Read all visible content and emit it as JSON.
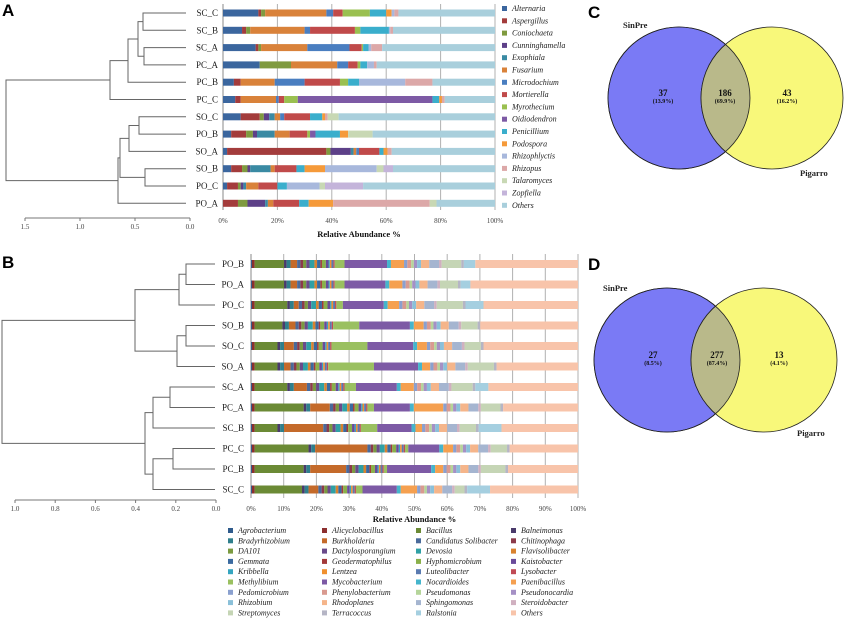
{
  "panel_labels": {
    "a": "A",
    "b": "B",
    "c": "C",
    "d": "D"
  },
  "chart_data": [
    {
      "id": "A",
      "type": "bar",
      "orientation": "horizontal-stacked",
      "xlabel": "Relative Abundance %",
      "xticks": [
        "0%",
        "20%",
        "40%",
        "60%",
        "80%",
        "100%"
      ],
      "dendrogram_ticks": [
        "1.5",
        "1.0",
        "0.5",
        "0.0"
      ],
      "samples": [
        "SC_C",
        "SC_B",
        "SC_A",
        "PC_A",
        "PC_B",
        "PC_C",
        "SO_C",
        "PO_B",
        "SO_A",
        "SO_B",
        "PO_C",
        "PO_A"
      ],
      "series": [
        {
          "name": "Alternaria",
          "color": "#3b669e"
        },
        {
          "name": "Aspergillus",
          "color": "#a33c3c"
        },
        {
          "name": "Coniochaeta",
          "color": "#7f9a3f"
        },
        {
          "name": "Cunninghamella",
          "color": "#5d4088"
        },
        {
          "name": "Exophiala",
          "color": "#3a8aa3"
        },
        {
          "name": "Fusarium",
          "color": "#d9823a"
        },
        {
          "name": "Microdochium",
          "color": "#4a7ec0"
        },
        {
          "name": "Mortierella",
          "color": "#c04a4a"
        },
        {
          "name": "Myrothecium",
          "color": "#9ac050"
        },
        {
          "name": "Oidiodendron",
          "color": "#7d5aa5"
        },
        {
          "name": "Penicillium",
          "color": "#3aaecc"
        },
        {
          "name": "Podospora",
          "color": "#f59a3a"
        },
        {
          "name": "Rhizophlyctis",
          "color": "#a8b8dc"
        },
        {
          "name": "Rhizopus",
          "color": "#dca8a8"
        },
        {
          "name": "Talaromyces",
          "color": "#c8d8b4"
        },
        {
          "name": "Zopfiella",
          "color": "#c4b4da"
        },
        {
          "name": "Others",
          "color": "#a9cfdc"
        }
      ],
      "values": {
        "SC_C": [
          13,
          1,
          1.5,
          0,
          0,
          22.5,
          2.5,
          3.5,
          10,
          0,
          6,
          2,
          1,
          1.5,
          0,
          0,
          null
        ],
        "SC_B": [
          7,
          1.5,
          1.5,
          0,
          0,
          20,
          2,
          16.5,
          2,
          0,
          10.5,
          0,
          0.5,
          1,
          0,
          0,
          null
        ],
        "SC_A": [
          12,
          1,
          1,
          0,
          0,
          17,
          15.5,
          4.5,
          0.5,
          0,
          2,
          0,
          1,
          4,
          0,
          0,
          null
        ],
        "PC_A": [
          13.5,
          0,
          11.5,
          0,
          0,
          17,
          4,
          3.5,
          1,
          0,
          2.5,
          0,
          2.5,
          1,
          0,
          0,
          null
        ],
        "PC_B": [
          4,
          2.5,
          0,
          0,
          0,
          12.5,
          11,
          13,
          3,
          0,
          4,
          0,
          17,
          10,
          0,
          0,
          null
        ],
        "PC_C": [
          4.5,
          2,
          0,
          0,
          0,
          13,
          1,
          2,
          5,
          49.5,
          2.5,
          1,
          0,
          1,
          0,
          0,
          null
        ],
        "SO_C": [
          6.5,
          7,
          1.5,
          2,
          2,
          2,
          1.5,
          9.5,
          0,
          0,
          4.5,
          1,
          0,
          1,
          4,
          0,
          null
        ],
        "PO_B": [
          3,
          5.5,
          2.5,
          1.5,
          6.5,
          5.5,
          0,
          6.5,
          1,
          2,
          9,
          3,
          0,
          0,
          9,
          0,
          null
        ],
        "SO_A": [
          1.5,
          36.5,
          1.5,
          7.5,
          1,
          1,
          1,
          7.5,
          0,
          0,
          1.5,
          1.5,
          0,
          1.5,
          0,
          0,
          null
        ],
        "SO_B": [
          3,
          4,
          2,
          1,
          7.5,
          1.5,
          0,
          8,
          0,
          0,
          3,
          7.5,
          19,
          0,
          2.5,
          3.5,
          null
        ],
        "PO_C": [
          1.5,
          4,
          1,
          1,
          1,
          4.5,
          0,
          7,
          0,
          0,
          3.5,
          0,
          12,
          0,
          2,
          14,
          null
        ],
        "PO_A": [
          0,
          5.5,
          3.5,
          6.5,
          1,
          2,
          0,
          9.5,
          0,
          0,
          3.5,
          9,
          0,
          35.5,
          2.5,
          0,
          null
        ]
      }
    },
    {
      "id": "B",
      "type": "bar",
      "orientation": "horizontal-stacked",
      "xlabel": "Relative Abundance  %",
      "xticks": [
        "0%",
        "10%",
        "20%",
        "30%",
        "40%",
        "50%",
        "60%",
        "70%",
        "80%",
        "90%",
        "100%"
      ],
      "dendrogram_ticks": [
        "1.0",
        "0.8",
        "0.6",
        "0.4",
        "0.2",
        "0.0"
      ],
      "samples": [
        "PO_B",
        "PO_A",
        "PO_C",
        "SO_B",
        "SO_C",
        "SO_A",
        "SC_A",
        "PC_A",
        "SC_B",
        "PC_C",
        "PC_B",
        "SC_C"
      ],
      "series": [
        {
          "name": "Agrobacterium",
          "color": "#2f5b8c"
        },
        {
          "name": "Alicyclobacillus",
          "color": "#8c2f2f"
        },
        {
          "name": "Bacillus",
          "color": "#6b8a35"
        },
        {
          "name": "Balneimonas",
          "color": "#4a3a6b"
        },
        {
          "name": "Bradyrhizobium",
          "color": "#2f7f8c"
        },
        {
          "name": "Burkholderia",
          "color": "#c46a2a"
        },
        {
          "name": "Candidatus Solibacter",
          "color": "#4a6a9a"
        },
        {
          "name": "Chitinophaga",
          "color": "#8c3a4a"
        },
        {
          "name": "DA101",
          "color": "#7a9a40"
        },
        {
          "name": "Dactylosporangium",
          "color": "#6a4a8a"
        },
        {
          "name": "Devosia",
          "color": "#2fa0a5"
        },
        {
          "name": "Flavisolibacter",
          "color": "#d9822f"
        },
        {
          "name": "Gemmata",
          "color": "#3a6aa0"
        },
        {
          "name": "Geodermatophilus",
          "color": "#a33a3a"
        },
        {
          "name": "Hyphomicrobium",
          "color": "#8ab04a"
        },
        {
          "name": "Kaistobacter",
          "color": "#6a4a9a"
        },
        {
          "name": "Kribbella",
          "color": "#35a5c0"
        },
        {
          "name": "Lentzea",
          "color": "#f0902f"
        },
        {
          "name": "Luteolibacter",
          "color": "#5a7ab0"
        },
        {
          "name": "Lysobacter",
          "color": "#c04a55"
        },
        {
          "name": "Methylibium",
          "color": "#9ac060"
        },
        {
          "name": "Mycobacterium",
          "color": "#7d5aa5"
        },
        {
          "name": "Nocardioides",
          "color": "#45b5cc"
        },
        {
          "name": "Paenibacillus",
          "color": "#f5a050"
        },
        {
          "name": "Pedomicrobium",
          "color": "#8aa0cf"
        },
        {
          "name": "Phenylobacterium",
          "color": "#d99a90"
        },
        {
          "name": "Pseudomonas",
          "color": "#b5d59a"
        },
        {
          "name": "Pseudonocardia",
          "color": "#a590c5"
        },
        {
          "name": "Rhizobium",
          "color": "#8ac0d9"
        },
        {
          "name": "Rhodoplanes",
          "color": "#f5b58a"
        },
        {
          "name": "Sphingomonas",
          "color": "#a5b5d0"
        },
        {
          "name": "Steroidobacter",
          "color": "#d0b0c0"
        },
        {
          "name": "Streptomyces",
          "color": "#c5d5b5"
        },
        {
          "name": "Terracoccus",
          "color": "#b5b5c5"
        },
        {
          "name": "Ralstonia",
          "color": "#a5cfe0"
        },
        {
          "name": "Others",
          "color": "#f8c4aa"
        }
      ],
      "values": {
        "PO_B": [
          0.3,
          0.8,
          9,
          0.8,
          1.2,
          2,
          1,
          0.8,
          1,
          1,
          1.5,
          0.8,
          1,
          0.5,
          1.2,
          0.8,
          0.4,
          0.5,
          0.6,
          0.4,
          3,
          13,
          1.2,
          4,
          1,
          1.2,
          0.8,
          1,
          1.2,
          2.5,
          3,
          0.8,
          6,
          0.8,
          3.5,
          null
        ],
        "PO_A": [
          0.3,
          0.8,
          9,
          0.8,
          1.2,
          2,
          1,
          0.8,
          1,
          1,
          1.5,
          0.8,
          1,
          0.5,
          1.2,
          0.8,
          0.4,
          0.5,
          0.6,
          0.4,
          3,
          12.5,
          1.2,
          4,
          1,
          1.2,
          0.8,
          1,
          1.2,
          2.5,
          3,
          0.8,
          5.5,
          0.8,
          3,
          null
        ],
        "PO_C": [
          0.3,
          0.8,
          10,
          0.8,
          1.2,
          1.5,
          1,
          0.8,
          1,
          1,
          1.5,
          0.8,
          1,
          0.5,
          1.2,
          0.8,
          0.4,
          0.5,
          0.6,
          0.4,
          2,
          12.5,
          1.2,
          3.5,
          1,
          1.2,
          0.8,
          1,
          1.2,
          2.5,
          3,
          0.8,
          8,
          0.8,
          5.5,
          null
        ],
        "SO_B": [
          0.3,
          0.8,
          8.5,
          0.8,
          1.2,
          2,
          1,
          0.8,
          1,
          1,
          1.5,
          0.8,
          1,
          0.5,
          1.2,
          0.8,
          0.4,
          0.5,
          0.6,
          0.4,
          8,
          15.5,
          1.2,
          3,
          1,
          1.2,
          0.8,
          1,
          1.2,
          2.5,
          3,
          0.8,
          5,
          0.8,
          0,
          null
        ],
        "SO_C": [
          0.3,
          0.8,
          7,
          0.8,
          1.2,
          3,
          1,
          0.8,
          1,
          1,
          1.5,
          0.8,
          1,
          0.5,
          1.2,
          0.8,
          0.4,
          0.5,
          0.6,
          0.4,
          11,
          14,
          1.2,
          3,
          1,
          1.2,
          0.8,
          1,
          1.2,
          2.5,
          3,
          0.8,
          5,
          0.8,
          0,
          null
        ],
        "SO_A": [
          0.3,
          0.8,
          7,
          0.8,
          1.2,
          2,
          1,
          0.8,
          1,
          1,
          1.5,
          0.8,
          1,
          0.5,
          1.2,
          0.8,
          0.4,
          0.5,
          0.6,
          0.4,
          14,
          13.5,
          1.2,
          2.5,
          1,
          1.2,
          0.8,
          1,
          1.2,
          2.5,
          3,
          0.8,
          8,
          0.8,
          0,
          null
        ],
        "SC_A": [
          0.3,
          0.8,
          10,
          0.8,
          1.2,
          4,
          1,
          0.8,
          1,
          1,
          1.5,
          0.8,
          1,
          0.5,
          1.2,
          0.8,
          0.4,
          0.5,
          0.6,
          0.4,
          3.5,
          12.5,
          1.2,
          4,
          1,
          1.2,
          0.8,
          1,
          1.2,
          2.5,
          3,
          0.8,
          6.5,
          0.8,
          4,
          null
        ],
        "PC_A": [
          0.3,
          0.8,
          15,
          0.8,
          1.2,
          6,
          1,
          0.8,
          1,
          1,
          1.5,
          0.8,
          1,
          0.5,
          1.2,
          0.8,
          0.4,
          0.5,
          0.6,
          0.4,
          2,
          11,
          1.2,
          9,
          1,
          1.2,
          0.8,
          1,
          1.2,
          2.5,
          3,
          0.8,
          6,
          0.8,
          0,
          null
        ],
        "SC_B": [
          0.3,
          0.8,
          7,
          0.8,
          1.2,
          12,
          1,
          0.8,
          1,
          1,
          1.5,
          0.8,
          1,
          0.5,
          1.2,
          0.8,
          0.4,
          0.5,
          0.6,
          0.4,
          5,
          10.5,
          1.2,
          2,
          1,
          1.2,
          0.8,
          1,
          1.2,
          2.5,
          3,
          0.8,
          5,
          0.8,
          7,
          null
        ],
        "PC_C": [
          0.3,
          0.8,
          16.5,
          0.8,
          1.2,
          16,
          1,
          0.8,
          1,
          1,
          1.5,
          0.8,
          1,
          0.5,
          1.2,
          0.8,
          0.4,
          0.5,
          0.6,
          0.4,
          1,
          9.5,
          1.2,
          3,
          1,
          1.2,
          0.8,
          1,
          1.2,
          2.5,
          3,
          0.8,
          5,
          0.8,
          0,
          null
        ],
        "PC_B": [
          0.3,
          0.8,
          15,
          0.8,
          1.2,
          11,
          1,
          0.8,
          1,
          1,
          1.5,
          0.8,
          1,
          0.5,
          1.2,
          0.8,
          0.4,
          0.5,
          0.6,
          0.4,
          1,
          13.5,
          1.2,
          2.5,
          1,
          1.2,
          0.8,
          1,
          1.2,
          2.5,
          3,
          0.8,
          7.5,
          0.8,
          0,
          null
        ],
        "SC_C": [
          0.3,
          0.8,
          14.5,
          0.8,
          1.2,
          3,
          1,
          0.8,
          1,
          1,
          1.5,
          0.8,
          1,
          0.5,
          1.2,
          0.8,
          0.4,
          0.5,
          0.6,
          0.4,
          2,
          10.5,
          1.2,
          5,
          1,
          1.2,
          0.8,
          1,
          1.2,
          2.5,
          3,
          0.8,
          3,
          0.8,
          7,
          null
        ]
      }
    },
    {
      "id": "C",
      "type": "venn",
      "sets": [
        "SinPre",
        "Pigarro"
      ],
      "left_only": {
        "count": "37",
        "pct": "(13.9%)"
      },
      "shared": {
        "count": "186",
        "pct": "(69.9%)"
      },
      "right_only": {
        "count": "43",
        "pct": "(16.2%)"
      },
      "colors": {
        "left": "#7a7af5",
        "right": "#f8f87a",
        "overlap": "#b9b98a"
      }
    },
    {
      "id": "D",
      "type": "venn",
      "sets": [
        "SinPre",
        "Pigarro"
      ],
      "left_only": {
        "count": "27",
        "pct": "(8.5%)"
      },
      "shared": {
        "count": "277",
        "pct": "(87.4%)"
      },
      "right_only": {
        "count": "13",
        "pct": "(4.1%)"
      },
      "colors": {
        "left": "#7a7af5",
        "right": "#f8f87a",
        "overlap": "#b9b98a"
      }
    }
  ]
}
